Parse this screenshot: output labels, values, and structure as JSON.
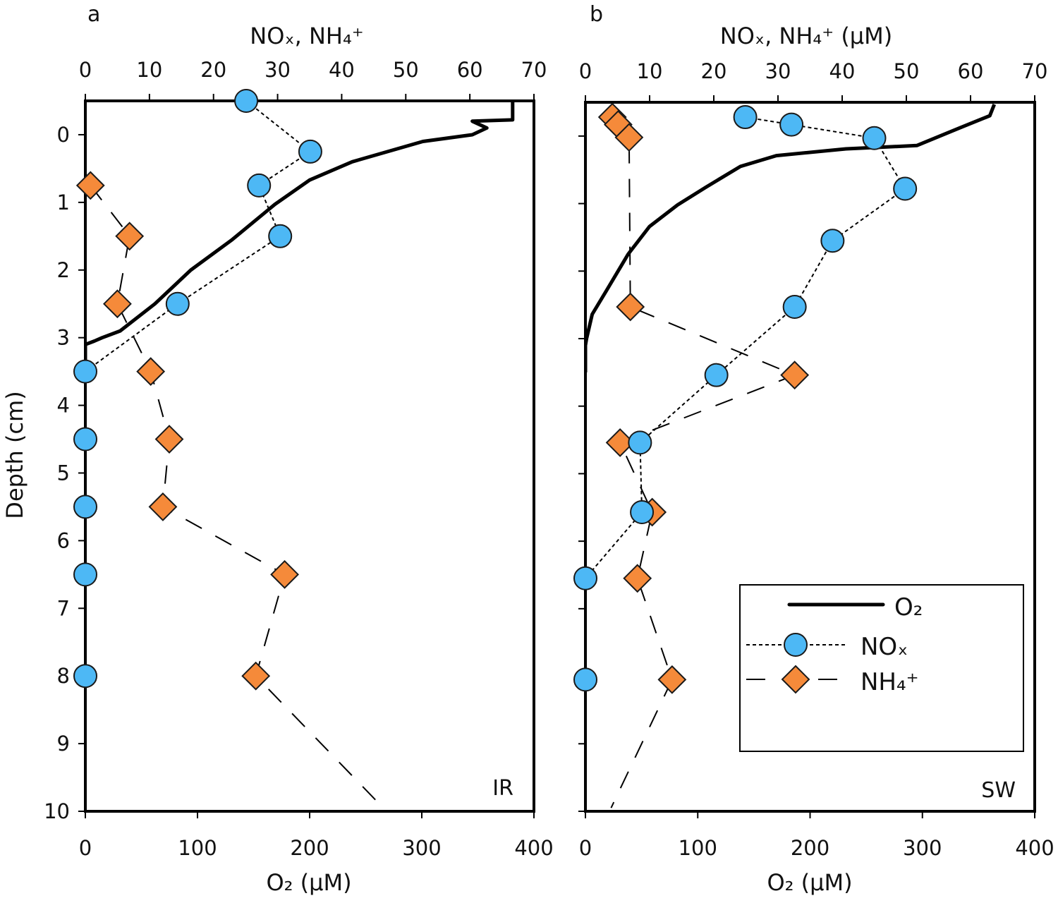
{
  "colors": {
    "nox": "#4db8f5",
    "nh4": "#f58a3a",
    "o2": "#000000",
    "marker_edge": "#1a1a1a"
  },
  "chart_data": [
    {
      "type": "line",
      "panel_label": "a",
      "site_label": "IR",
      "ylabel": "Depth (cm)",
      "ylim": [
        10,
        -0.5
      ],
      "yticks": [
        0,
        1,
        2,
        3,
        4,
        5,
        6,
        7,
        8,
        9,
        10
      ],
      "top_axis": {
        "label": "NOₓ, NH₄⁺",
        "range": [
          0,
          70
        ],
        "ticks": [
          0,
          10,
          20,
          30,
          40,
          50,
          60,
          70
        ]
      },
      "bottom_axis": {
        "label": "O₂ (μM)",
        "range": [
          0,
          400
        ],
        "ticks": [
          0,
          100,
          200,
          300,
          400
        ]
      },
      "grid": false,
      "series": [
        {
          "name": "O₂",
          "axis": "bottom",
          "style": "solid",
          "depth": [
            -0.5,
            -0.22,
            -0.2,
            -0.1,
            0.0,
            0.1,
            0.4,
            0.67,
            1.03,
            1.55,
            2.0,
            2.5,
            2.9,
            3.0,
            3.05,
            3.1,
            3.5
          ],
          "values": [
            381,
            381,
            345,
            358,
            345,
            301,
            238,
            200,
            169,
            131,
            94,
            62,
            31,
            15,
            8,
            0,
            0
          ]
        },
        {
          "name": "NOₓ",
          "axis": "top",
          "style": "dotted",
          "marker": "circle",
          "depth": [
            -0.5,
            0.25,
            0.75,
            1.5,
            2.5,
            3.5,
            4.5,
            5.5,
            6.5,
            8
          ],
          "values": [
            25.1,
            35.1,
            27.1,
            30.4,
            14.4,
            0,
            0,
            0,
            0,
            0
          ]
        },
        {
          "name": "NH₄⁺",
          "axis": "top",
          "style": "dashed",
          "marker": "diamond",
          "depth": [
            0.75,
            1.5,
            2.5,
            3.5,
            4.5,
            5.5,
            6.5,
            8,
            10
          ],
          "values": [
            0.8,
            6.9,
            5.0,
            10.2,
            13.1,
            12.1,
            31.1,
            26.6,
            47
          ],
          "marker_mask": [
            true,
            true,
            true,
            true,
            true,
            true,
            true,
            true,
            false
          ]
        }
      ]
    },
    {
      "type": "line",
      "panel_label": "b",
      "site_label": "SW",
      "ylim": [
        10,
        -0.5
      ],
      "yticks": [
        0,
        1,
        2,
        3,
        4,
        5,
        6,
        7,
        8,
        9,
        10
      ],
      "top_axis": {
        "label": "NOₓ, NH₄⁺ (μM)",
        "range": [
          0,
          70
        ],
        "ticks": [
          0,
          10,
          20,
          30,
          40,
          50,
          60,
          70
        ]
      },
      "bottom_axis": {
        "label": "O₂ (μM)",
        "range": [
          0,
          400
        ],
        "ticks": [
          0,
          100,
          200,
          300,
          400
        ]
      },
      "grid": false,
      "legend": {
        "position": "lower-right",
        "entries": [
          "O₂",
          "NOₓ",
          "NH₄⁺"
        ]
      },
      "series": [
        {
          "name": "O₂",
          "axis": "bottom",
          "style": "solid",
          "depth": [
            -0.47,
            -0.3,
            -0.2,
            -0.12,
            0.14,
            0.19,
            0.29,
            0.45,
            0.76,
            1.02,
            1.34,
            1.75,
            2.28,
            2.64,
            3.0,
            3.1,
            3.5
          ],
          "values": [
            364,
            360,
            345,
            333,
            295,
            232,
            170,
            138,
            107,
            82,
            57,
            38,
            19,
            6,
            1,
            0,
            0
          ]
        },
        {
          "name": "NOₓ",
          "axis": "top",
          "style": "dotted",
          "marker": "circle",
          "depth": [
            -0.28,
            -0.17,
            0.03,
            0.78,
            1.55,
            2.53,
            3.54,
            4.54,
            5.57,
            6.55,
            8.05
          ],
          "values": [
            24.9,
            32.1,
            45.0,
            49.8,
            38.5,
            32.6,
            20.4,
            8.5,
            8.8,
            0,
            0
          ]
        },
        {
          "name": "NH₄⁺",
          "axis": "top",
          "style": "dashed",
          "marker": "diamond",
          "depth": [
            -0.28,
            -0.17,
            0.02,
            2.53,
            3.54,
            4.54,
            5.57,
            6.55,
            8.05,
            9.95
          ],
          "values": [
            4.2,
            5.1,
            6.8,
            7.0,
            32.6,
            5.4,
            10.4,
            8.1,
            13.5,
            4.0
          ],
          "marker_mask": [
            true,
            true,
            true,
            true,
            true,
            true,
            true,
            true,
            true,
            false
          ]
        }
      ]
    }
  ]
}
